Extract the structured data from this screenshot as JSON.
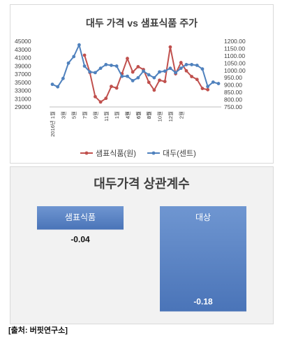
{
  "chart_data": [
    {
      "type": "line",
      "title": "대두 가격 vs 샘표식품 주가",
      "x": [
        "2016년 1월",
        "2월",
        "3월",
        "4월",
        "5월",
        "6월",
        "7월",
        "8월",
        "9월",
        "10월",
        "11월",
        "12월",
        "1월",
        "2월",
        "3월",
        "4월",
        "5월",
        "6월",
        "7월",
        "8월",
        "9월",
        "10월",
        "11월",
        "12월",
        "1월",
        "2월",
        "3월",
        "4월",
        "5월",
        "6월",
        "7월",
        "8월"
      ],
      "x_tick_labels": [
        "2016년 1월",
        "3월",
        "5월",
        "7월",
        "9월",
        "11월",
        "1월",
        "4월",
        "6월",
        "8월",
        "10월",
        "12월",
        "2월",
        "4월",
        "6월",
        "8월"
      ],
      "series": [
        {
          "name": "샘표식품(원)",
          "axis": "left",
          "color": "#c0504d",
          "values": [
            null,
            null,
            null,
            null,
            null,
            null,
            41600,
            37400,
            31500,
            30200,
            31100,
            34000,
            33600,
            37100,
            40800,
            37500,
            38800,
            38100,
            35000,
            33100,
            35500,
            35200,
            43600,
            37100,
            39800,
            37800,
            36400,
            35700,
            33500,
            33200,
            null,
            null
          ]
        },
        {
          "name": "대두(센트)",
          "axis": "right",
          "color": "#4f81bd",
          "values": [
            905,
            888,
            945,
            1050,
            1095,
            1175,
            1030,
            990,
            985,
            1015,
            1040,
            1035,
            1030,
            960,
            960,
            930,
            950,
            995,
            970,
            950,
            990,
            995,
            1015,
            985,
            1015,
            1040,
            1040,
            1035,
            1010,
            890,
            920,
            910
          ]
        }
      ],
      "ylim_left": [
        29000,
        45000
      ],
      "yticks_left": [
        29000,
        31000,
        33000,
        35000,
        37000,
        39000,
        41000,
        43000,
        45000
      ],
      "ylim_right": [
        750,
        1200
      ],
      "yticks_right": [
        "750.00",
        "800.00",
        "850.00",
        "900.00",
        "950.00",
        "1000.00",
        "1050.00",
        "1100.00",
        "1150.00",
        "1200.00"
      ],
      "legend_position": "bottom"
    },
    {
      "type": "bar",
      "title": "대두가격 상관계수",
      "categories": [
        "샘표식품",
        "대상"
      ],
      "values": [
        -0.04,
        -0.18
      ],
      "value_labels": [
        "-0.04",
        "-0.18"
      ]
    }
  ],
  "source": "[출처: 버핏연구소]",
  "colors": {
    "red": "#c0504d",
    "blue": "#4f81bd",
    "bar_blue": "#4a74b8"
  }
}
